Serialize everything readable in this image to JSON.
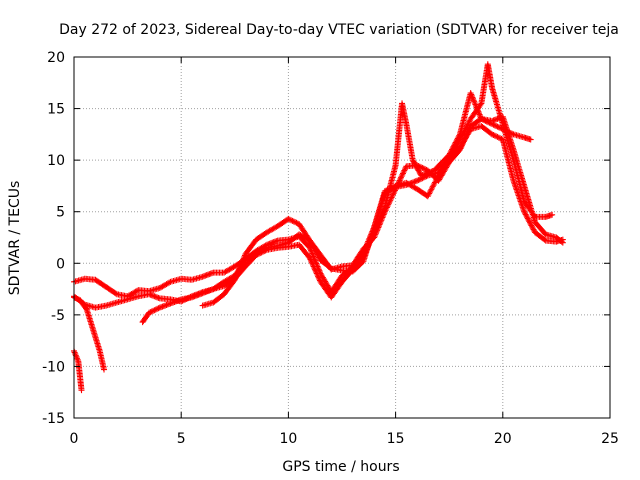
{
  "chart_data": {
    "type": "scatter",
    "title": "Day 272 of 2023, Sidereal Day-to-day VTEC variation (SDTVAR) for receiver teja",
    "xlabel": "GPS time / hours",
    "ylabel": "SDTVAR / TECUs",
    "xlim": [
      0,
      25
    ],
    "ylim": [
      -15,
      20
    ],
    "xticks": [
      0,
      5,
      10,
      15,
      20,
      25
    ],
    "yticks": [
      -15,
      -10,
      -5,
      0,
      5,
      10,
      15,
      20
    ],
    "grid": true,
    "marker": "+",
    "series": [
      {
        "name": "SDTVAR",
        "color": "#ff0000",
        "tracks": [
          [
            [
              0.0,
              -1.8
            ],
            [
              0.5,
              -1.5
            ],
            [
              1.0,
              -1.6
            ],
            [
              1.5,
              -2.3
            ],
            [
              2.0,
              -3.0
            ],
            [
              2.5,
              -3.2
            ],
            [
              3.0,
              -2.6
            ],
            [
              3.5,
              -2.7
            ],
            [
              4.0,
              -2.4
            ],
            [
              4.5,
              -1.8
            ],
            [
              5.0,
              -1.5
            ],
            [
              5.5,
              -1.6
            ],
            [
              6.0,
              -1.3
            ],
            [
              6.5,
              -0.9
            ],
            [
              7.0,
              -0.9
            ],
            [
              7.5,
              -0.3
            ],
            [
              8.0,
              0.4
            ],
            [
              8.5,
              1.2
            ],
            [
              9.0,
              1.8
            ],
            [
              9.5,
              2.2
            ],
            [
              10.0,
              2.3
            ],
            [
              10.5,
              2.6
            ],
            [
              11.0,
              1.5
            ],
            [
              11.5,
              -1.0
            ],
            [
              12.0,
              -2.8
            ],
            [
              12.5,
              -1.2
            ],
            [
              13.0,
              -0.4
            ],
            [
              13.5,
              0.6
            ],
            [
              14.0,
              3.0
            ],
            [
              14.5,
              5.5
            ],
            [
              15.0,
              9.5
            ],
            [
              15.3,
              15.5
            ],
            [
              15.5,
              13.5
            ],
            [
              15.8,
              10.0
            ],
            [
              16.2,
              8.5
            ],
            [
              16.8,
              9.0
            ],
            [
              17.5,
              10.5
            ],
            [
              18.0,
              12.5
            ],
            [
              18.5,
              16.5
            ],
            [
              19.0,
              14.0
            ],
            [
              19.5,
              13.5
            ],
            [
              20.0,
              13.0
            ],
            [
              20.5,
              12.5
            ],
            [
              21.0,
              12.2
            ],
            [
              21.3,
              12.0
            ]
          ],
          [
            [
              0.0,
              -3.2
            ],
            [
              0.5,
              -4.0
            ],
            [
              1.0,
              -4.3
            ],
            [
              1.5,
              -4.1
            ],
            [
              2.0,
              -3.8
            ],
            [
              2.5,
              -3.5
            ],
            [
              3.0,
              -3.2
            ],
            [
              3.5,
              -3.0
            ],
            [
              4.0,
              -3.4
            ],
            [
              4.5,
              -3.5
            ],
            [
              5.0,
              -3.7
            ],
            [
              5.5,
              -3.2
            ],
            [
              6.0,
              -2.8
            ],
            [
              6.5,
              -2.5
            ],
            [
              7.0,
              -2.2
            ],
            [
              7.5,
              -1.5
            ],
            [
              8.0,
              -0.3
            ],
            [
              8.5,
              0.8
            ],
            [
              9.0,
              1.3
            ],
            [
              9.5,
              1.5
            ],
            [
              10.0,
              1.6
            ],
            [
              10.5,
              1.8
            ],
            [
              11.0,
              0.5
            ],
            [
              11.5,
              -1.8
            ],
            [
              12.0,
              -3.3
            ],
            [
              12.5,
              -1.8
            ],
            [
              13.0,
              -0.6
            ],
            [
              13.5,
              1.0
            ],
            [
              14.0,
              3.5
            ],
            [
              14.5,
              7.0
            ],
            [
              15.0,
              7.5
            ],
            [
              15.5,
              7.8
            ],
            [
              16.0,
              7.2
            ],
            [
              16.5,
              6.5
            ],
            [
              17.0,
              8.5
            ],
            [
              17.5,
              10.0
            ],
            [
              18.0,
              12.0
            ],
            [
              18.5,
              14.0
            ],
            [
              19.0,
              15.5
            ],
            [
              19.3,
              19.3
            ],
            [
              19.5,
              17.0
            ],
            [
              20.0,
              13.5
            ],
            [
              20.5,
              10.0
            ],
            [
              21.0,
              6.0
            ],
            [
              21.5,
              4.5
            ],
            [
              22.0,
              4.5
            ],
            [
              22.3,
              4.7
            ]
          ],
          [
            [
              0.0,
              -8.5
            ],
            [
              0.2,
              -9.5
            ],
            [
              0.35,
              -12.3
            ]
          ],
          [
            [
              0.0,
              -3.3
            ],
            [
              0.3,
              -3.6
            ],
            [
              0.6,
              -4.5
            ],
            [
              0.9,
              -6.5
            ],
            [
              1.2,
              -8.5
            ],
            [
              1.4,
              -10.3
            ]
          ],
          [
            [
              3.2,
              -5.7
            ],
            [
              3.5,
              -4.8
            ],
            [
              4.0,
              -4.3
            ],
            [
              4.5,
              -3.9
            ],
            [
              5.0,
              -3.5
            ],
            [
              5.5,
              -3.3
            ],
            [
              6.0,
              -2.9
            ],
            [
              6.5,
              -2.5
            ],
            [
              7.0,
              -1.8
            ],
            [
              7.5,
              -1.2
            ],
            [
              8.0,
              0.2
            ],
            [
              8.5,
              1.0
            ],
            [
              9.0,
              1.5
            ],
            [
              9.5,
              1.7
            ],
            [
              10.0,
              2.0
            ],
            [
              10.5,
              2.8
            ],
            [
              11.0,
              2.2
            ],
            [
              11.5,
              0.3
            ],
            [
              12.0,
              -0.5
            ],
            [
              12.5,
              -0.7
            ],
            [
              13.0,
              -0.8
            ],
            [
              13.5,
              0.2
            ],
            [
              14.0,
              3.5
            ],
            [
              14.5,
              6.8
            ],
            [
              15.0,
              7.4
            ],
            [
              15.5,
              7.6
            ],
            [
              16.0,
              8.0
            ],
            [
              16.5,
              8.5
            ],
            [
              17.0,
              8.8
            ],
            [
              17.5,
              10.2
            ],
            [
              18.0,
              11.2
            ],
            [
              18.5,
              13.0
            ],
            [
              19.0,
              13.3
            ],
            [
              19.5,
              12.5
            ],
            [
              20.0,
              12.0
            ],
            [
              20.5,
              8.0
            ],
            [
              21.0,
              5.0
            ],
            [
              21.5,
              3.0
            ],
            [
              22.0,
              2.2
            ],
            [
              22.5,
              2.1
            ],
            [
              22.8,
              2.3
            ]
          ],
          [
            [
              6.0,
              -4.1
            ],
            [
              6.5,
              -3.8
            ],
            [
              7.0,
              -3.0
            ],
            [
              7.5,
              -1.6
            ],
            [
              8.0,
              0.9
            ],
            [
              8.5,
              2.3
            ],
            [
              9.0,
              3.0
            ],
            [
              9.5,
              3.6
            ],
            [
              10.0,
              4.3
            ],
            [
              10.5,
              3.8
            ],
            [
              11.0,
              2.2
            ],
            [
              11.5,
              0.8
            ],
            [
              12.0,
              -0.6
            ],
            [
              12.5,
              -0.3
            ],
            [
              13.0,
              -0.2
            ],
            [
              13.5,
              1.4
            ],
            [
              14.0,
              2.5
            ],
            [
              14.5,
              5.0
            ],
            [
              15.0,
              7.2
            ],
            [
              15.5,
              9.4
            ],
            [
              16.0,
              9.5
            ],
            [
              16.5,
              9.0
            ],
            [
              17.0,
              8.0
            ],
            [
              17.5,
              9.8
            ],
            [
              18.0,
              11.0
            ],
            [
              18.5,
              13.3
            ],
            [
              19.0,
              14.0
            ],
            [
              19.5,
              13.8
            ],
            [
              20.0,
              14.2
            ],
            [
              20.5,
              11.0
            ],
            [
              21.0,
              7.5
            ],
            [
              21.5,
              4.0
            ],
            [
              22.0,
              2.8
            ],
            [
              22.5,
              2.5
            ],
            [
              22.8,
              2.0
            ]
          ]
        ]
      }
    ]
  }
}
